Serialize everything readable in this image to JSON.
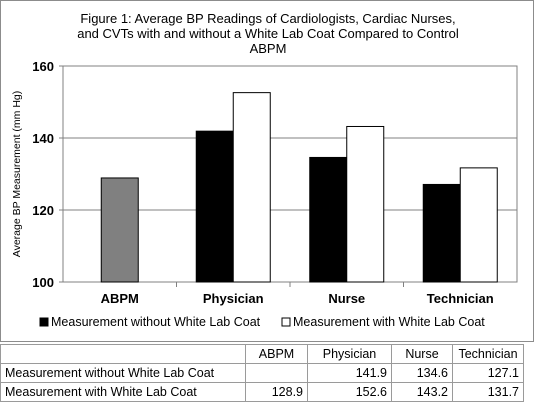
{
  "chart_data": {
    "type": "bar",
    "title": "Figure 1: Average BP Readings of Cardiologists, Cardiac Nurses, and CVTs with and without a White Lab Coat Compared to Control ABPM",
    "title_lines": [
      "Figure 1: Average BP Readings of Cardiologists, Cardiac Nurses,",
      "and CVTs with and without a White Lab Coat Compared to Control",
      "ABPM"
    ],
    "xlabel": "",
    "ylabel": "Average BP Measurement (mm Hg)",
    "categories": [
      "ABPM",
      "Physician",
      "Nurse",
      "Technician"
    ],
    "ylim": [
      100,
      160
    ],
    "yticks": [
      100,
      120,
      140,
      160
    ],
    "grid": true,
    "legend_position": "bottom",
    "series": [
      {
        "name": "Measurement without White Lab Coat",
        "values": [
          null,
          141.9,
          134.6,
          127.1
        ],
        "color": "#000000"
      },
      {
        "name": "Measurement with White Lab Coat",
        "values": [
          128.9,
          152.6,
          143.2,
          131.7
        ],
        "color": "#ffffff"
      }
    ],
    "control_color": "#808080"
  },
  "table": {
    "headers": [
      "",
      "ABPM",
      "Physician",
      "Nurse",
      "Technician"
    ],
    "rows": [
      {
        "label": "Measurement without White Lab Coat",
        "values": [
          "",
          "141.9",
          "134.6",
          "127.1"
        ]
      },
      {
        "label": "Measurement with White Lab Coat",
        "values": [
          "128.9",
          "152.6",
          "143.2",
          "131.7"
        ]
      }
    ]
  }
}
